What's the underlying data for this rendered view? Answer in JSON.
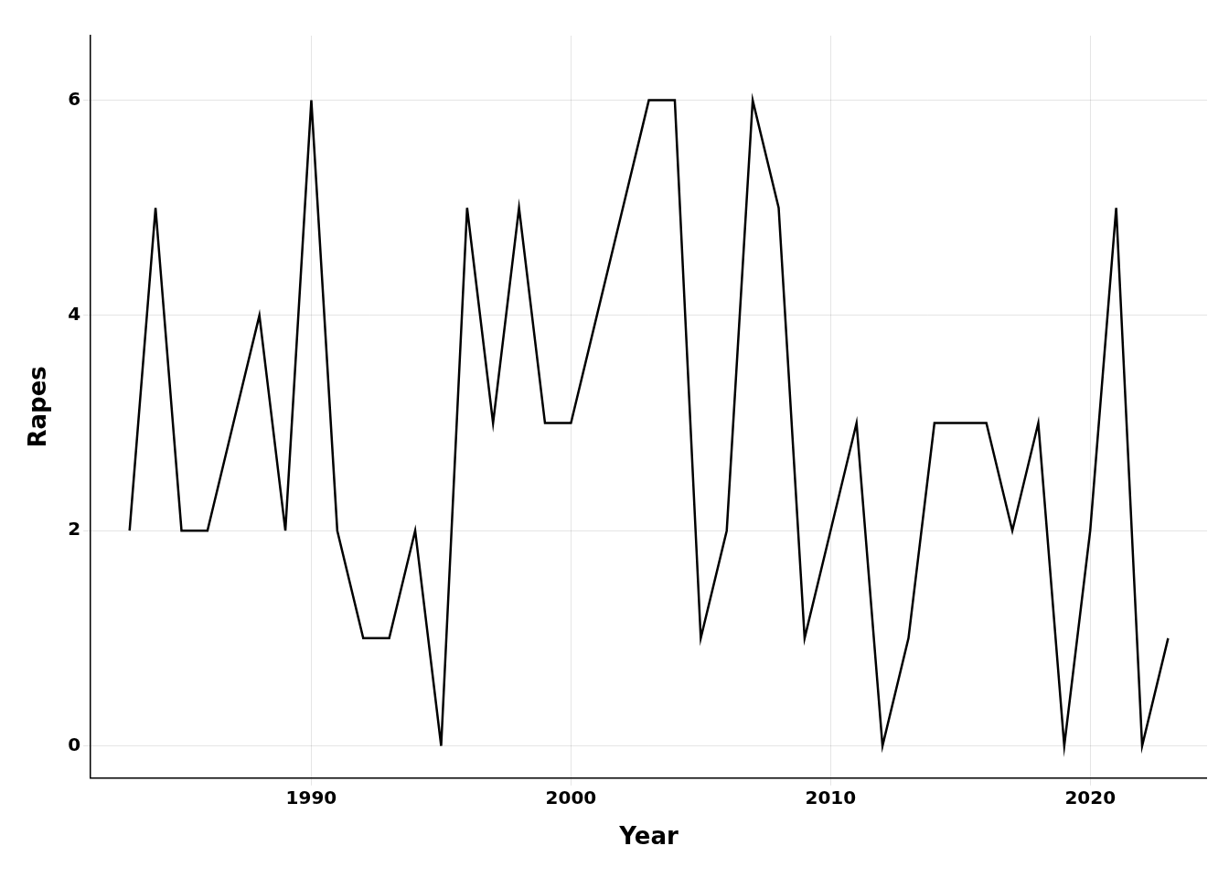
{
  "chart_data": {
    "type": "line",
    "x": [
      1983,
      1984,
      1985,
      1986,
      1987,
      1988,
      1989,
      1990,
      1991,
      1992,
      1993,
      1994,
      1995,
      1996,
      1997,
      1998,
      1999,
      2000,
      2001,
      2002,
      2003,
      2004,
      2005,
      2006,
      2007,
      2008,
      2009,
      2010,
      2011,
      2012,
      2013,
      2014,
      2015,
      2016,
      2017,
      2018,
      2019,
      2020,
      2021,
      2022,
      2023
    ],
    "values": [
      2,
      5,
      2,
      2,
      3,
      4,
      2,
      6,
      2,
      1,
      1,
      2,
      0,
      5,
      3,
      5,
      3,
      3,
      4,
      5,
      6,
      6,
      1,
      2,
      6,
      5,
      1,
      2,
      3,
      0,
      1,
      3,
      3,
      3,
      2,
      3,
      0,
      2,
      5,
      0,
      1
    ],
    "xlabel": "Year",
    "ylabel": "Rapes",
    "xlim": [
      1981.5,
      2024.5
    ],
    "ylim": [
      -0.3,
      6.6
    ],
    "xticks": [
      1990,
      2000,
      2010,
      2020
    ],
    "yticks": [
      0,
      2,
      4,
      6
    ],
    "color": "#000000",
    "grid": true
  }
}
